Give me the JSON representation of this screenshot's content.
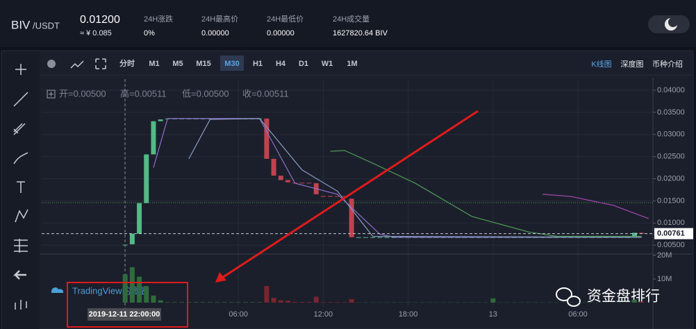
{
  "header": {
    "base": "BIV",
    "quote": "/USDT",
    "price": "0.01200",
    "cny": "≈ ¥ 0.085",
    "stats": [
      {
        "label": "24H涨跌",
        "value": "0%"
      },
      {
        "label": "24H最高价",
        "value": "0.00000"
      },
      {
        "label": "24H最低价",
        "value": "0.00000"
      },
      {
        "label": "24H成交量",
        "value": "1627820.64 BIV"
      }
    ]
  },
  "toolbar": {
    "timeframes": [
      "分时",
      "M1",
      "M5",
      "M15",
      "M30",
      "H1",
      "H4",
      "D1",
      "W1",
      "1M"
    ],
    "active": "M30",
    "views": [
      "K线图",
      "深度图",
      "币种介绍"
    ],
    "active_view": "K线图"
  },
  "watermarks": {
    "tradingview": "TradingView的图表",
    "wechat": "资金盘排行"
  },
  "chart_data": {
    "type": "candlestick",
    "ohlc_legend": [
      "开=0.00500",
      "高=0.00511",
      "低=0.00500",
      "收=0.00511"
    ],
    "crosshair_label": "2019-12-11 22:00:00",
    "up_color": "#53b987",
    "down_color": "#c1424f",
    "open": [
      0.005,
      0.0052,
      0.0076,
      0.0145,
      0.0255,
      0.033,
      0.0335,
      0.0335,
      0.0335,
      0.0335,
      0.0335,
      0.0335,
      0.0335,
      0.0335,
      0.0335,
      0.0335,
      0.0335,
      0.0335,
      0.0335,
      0.0335,
      0.0336,
      0.0245,
      0.0207,
      0.0197,
      0.0191,
      0.0191,
      0.0191,
      0.019,
      0.0161,
      0.0161,
      0.0161,
      0.0161,
      0.0155,
      0.0068,
      0.0068,
      0.0068,
      0.0068,
      0.0068,
      0.0068,
      0.0068,
      0.0068,
      0.0068,
      0.0068,
      0.0068,
      0.0068,
      0.0068,
      0.0068,
      0.0068,
      0.0068,
      0.0068,
      0.0068,
      0.0068,
      0.0068,
      0.0068,
      0.0068,
      0.0068,
      0.0068,
      0.0068,
      0.0068,
      0.0068,
      0.0068,
      0.0068,
      0.0068,
      0.0068,
      0.0068,
      0.0068,
      0.0068,
      0.0068,
      0.0068,
      0.0068,
      0.0068,
      0.0068,
      0.0068,
      0.0078
    ],
    "close": [
      0.00511,
      0.0076,
      0.0145,
      0.0255,
      0.033,
      0.0334,
      0.0336,
      0.0336,
      0.0336,
      0.0336,
      0.0336,
      0.0336,
      0.0336,
      0.0336,
      0.0336,
      0.0336,
      0.0336,
      0.0336,
      0.0336,
      0.0336,
      0.0245,
      0.0207,
      0.0197,
      0.0192,
      0.019,
      0.019,
      0.019,
      0.0165,
      0.016,
      0.016,
      0.016,
      0.016,
      0.0068,
      0.0068,
      0.0068,
      0.0068,
      0.0068,
      0.0068,
      0.0068,
      0.0068,
      0.0068,
      0.0068,
      0.0068,
      0.0068,
      0.0068,
      0.0068,
      0.0068,
      0.0068,
      0.0068,
      0.0068,
      0.0068,
      0.0068,
      0.0068,
      0.0068,
      0.0068,
      0.0068,
      0.0068,
      0.0068,
      0.0068,
      0.0068,
      0.0068,
      0.0068,
      0.0068,
      0.0068,
      0.0068,
      0.0068,
      0.0068,
      0.0068,
      0.0068,
      0.0068,
      0.0068,
      0.0068,
      0.0078,
      0.00761
    ],
    "ylim": [
      0.003,
      0.0425
    ],
    "yticks": [
      {
        "value": 0.005,
        "label": "0.00500"
      },
      {
        "value": 0.01,
        "label": "0.01000"
      },
      {
        "value": 0.015,
        "label": "0.01500"
      },
      {
        "value": 0.02,
        "label": "0.02000"
      },
      {
        "value": 0.025,
        "label": "0.02500"
      },
      {
        "value": 0.03,
        "label": "0.03000"
      },
      {
        "value": 0.035,
        "label": "0.03500"
      },
      {
        "value": 0.04,
        "label": "0.04000"
      }
    ],
    "xlim": [
      -11.8,
      74.6
    ],
    "xticks": [
      {
        "value": 16,
        "label": "06:00"
      },
      {
        "value": 28,
        "label": "12:00"
      },
      {
        "value": 40,
        "label": "18:00"
      },
      {
        "value": 52,
        "label": "13"
      },
      {
        "value": 64,
        "label": "06:00"
      }
    ],
    "last_price": {
      "value": 0.00761,
      "label": "0.00761"
    },
    "lines": [
      {
        "color": "#8e6fc9",
        "x": [
          4,
          6,
          19,
          24,
          30,
          33,
          36,
          38,
          73
        ],
        "values": [
          0.0225,
          0.0336,
          0.0336,
          0.019,
          0.0165,
          0.012,
          0.0075,
          0.0068,
          0.0068
        ]
      },
      {
        "color": "#8a9bc4",
        "x": [
          9,
          12,
          19,
          25,
          30,
          35,
          73
        ],
        "values": [
          0.0245,
          0.0334,
          0.0336,
          0.022,
          0.0172,
          0.007,
          0.0068
        ]
      },
      {
        "color": "#4f9a58",
        "x": [
          29,
          31,
          35,
          41,
          49,
          57,
          61,
          73
        ],
        "values": [
          0.0262,
          0.0264,
          0.0235,
          0.019,
          0.0115,
          0.008,
          0.007,
          0.007
        ]
      },
      {
        "color": "#a64ab5",
        "x": [
          59,
          63,
          69,
          74
        ],
        "values": [
          0.0165,
          0.016,
          0.014,
          0.011
        ]
      }
    ],
    "volume": {
      "values": [
        12000000,
        15000000,
        11000000,
        7000000,
        3000000,
        1000000,
        200000,
        200000,
        200000,
        200000,
        200000,
        200000,
        200000,
        200000,
        200000,
        200000,
        200000,
        200000,
        200000,
        200000,
        7000000,
        2000000,
        1000000,
        800000,
        300000,
        300000,
        300000,
        2500000,
        200000,
        200000,
        200000,
        200000,
        1500000,
        100000,
        100000,
        100000,
        100000,
        100000,
        100000,
        100000,
        100000,
        100000,
        100000,
        100000,
        100000,
        100000,
        100000,
        100000,
        100000,
        100000,
        100000,
        100000,
        1800000,
        100000,
        100000,
        100000,
        100000,
        100000,
        100000,
        100000,
        100000,
        100000,
        100000,
        100000,
        100000,
        100000,
        100000,
        100000,
        100000,
        100000,
        100000,
        100000,
        1200000,
        500000
      ],
      "ylim": [
        0,
        20000000
      ],
      "yticks": [
        {
          "value": 20000000,
          "label": "20M"
        },
        {
          "value": 10000000,
          "label": "10M"
        }
      ]
    }
  }
}
